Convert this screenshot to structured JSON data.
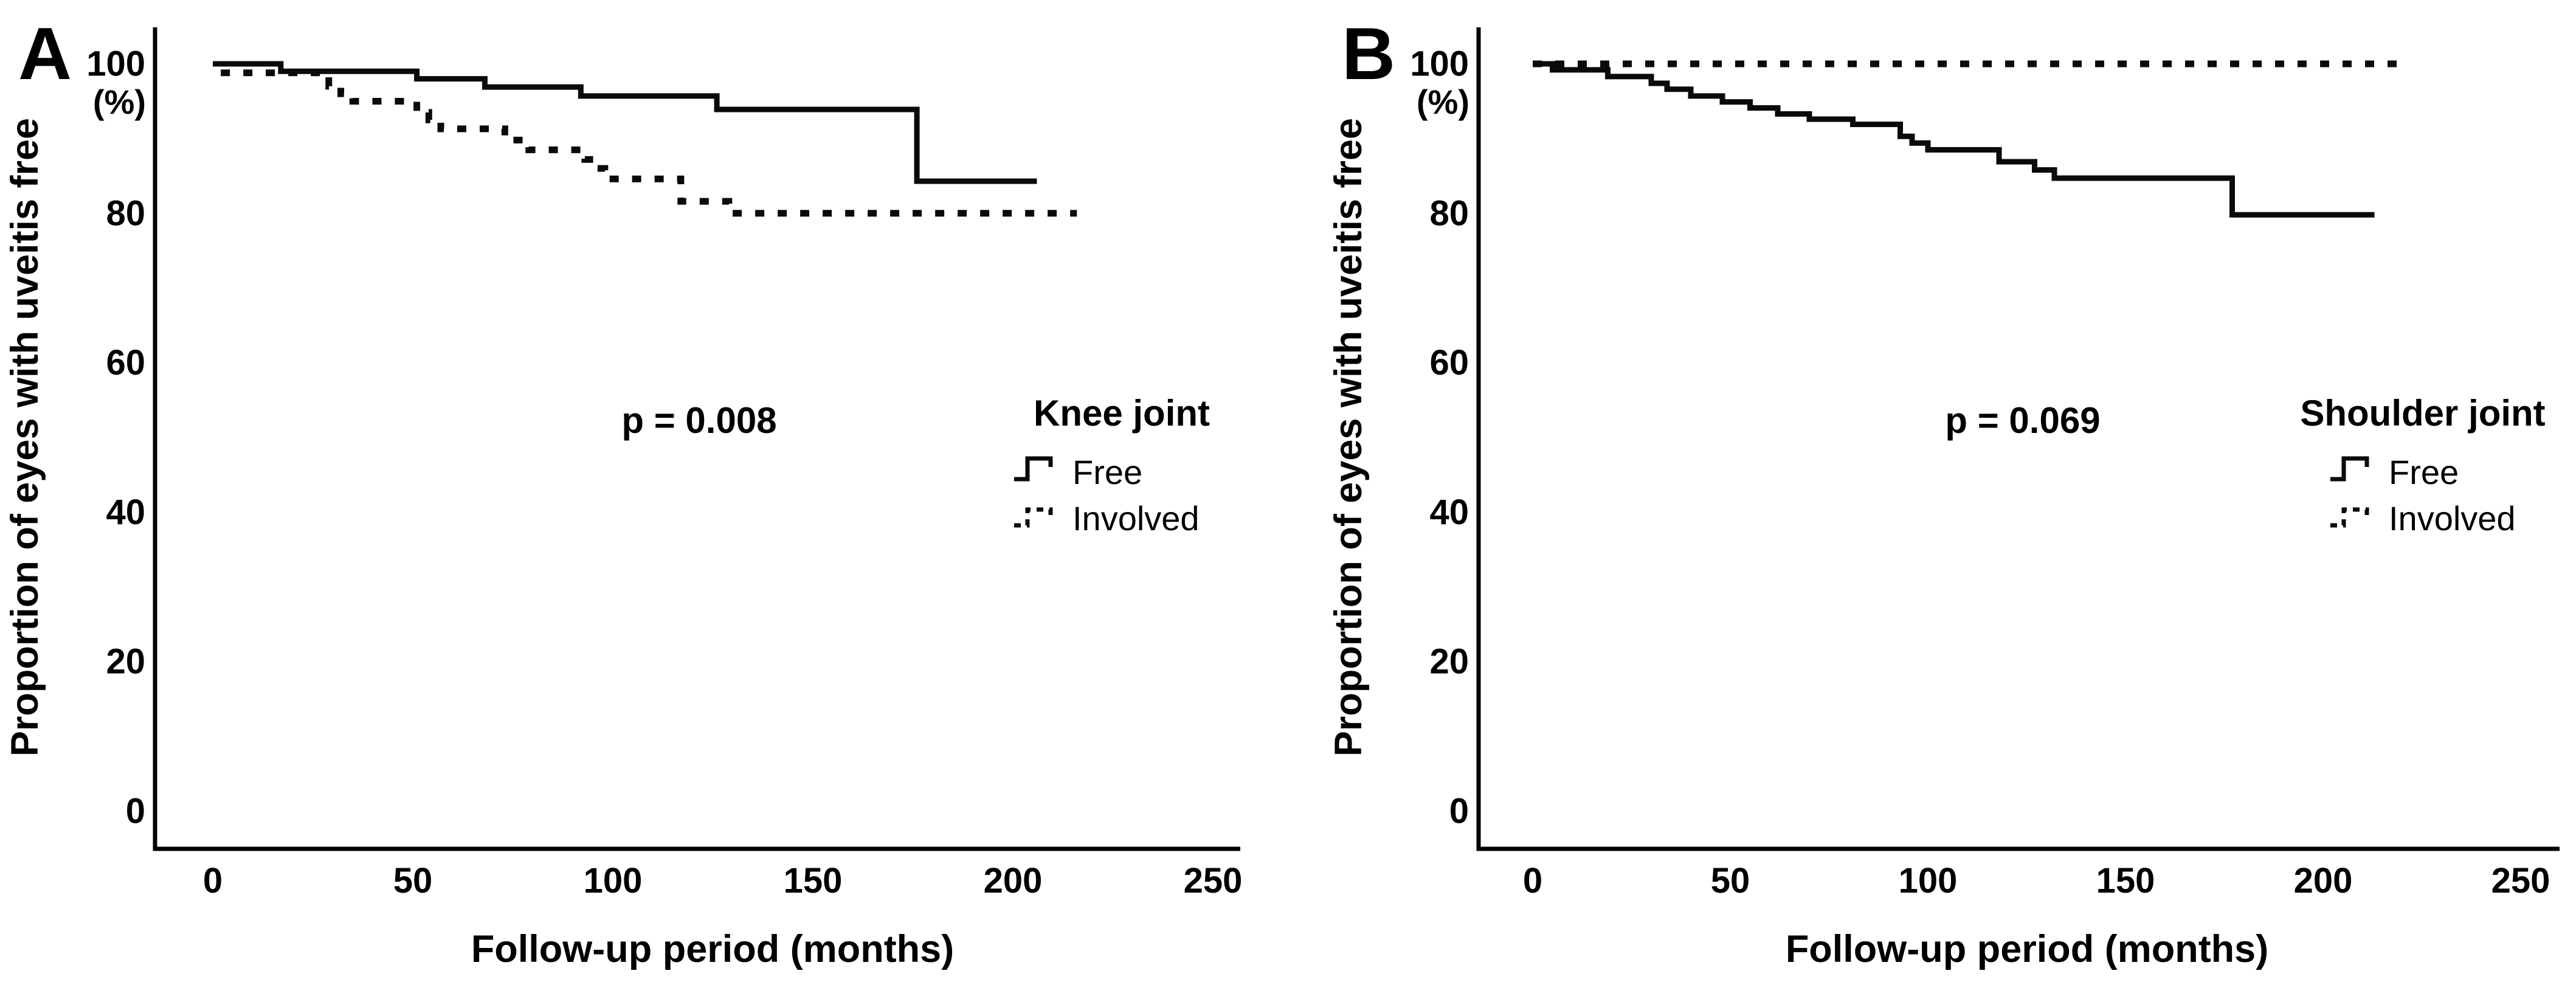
{
  "figure": {
    "background": "#ffffff",
    "ink_color": "#000000",
    "panel_count": 2
  },
  "chart_data": [
    {
      "type": "line",
      "step": true,
      "panel_label": "A",
      "annotation": "p = 0.008",
      "legend_title": "Knee joint",
      "legend_position": "right",
      "xlabel": "Follow-up period (months)",
      "ylabel": "Proportion of eyes with uveitis free",
      "ylabel_unit": "(%)",
      "x_ticks": [
        0,
        50,
        100,
        150,
        200,
        250
      ],
      "y_ticks": [
        100,
        80,
        60,
        40,
        20,
        0
      ],
      "xlim": [
        0,
        265
      ],
      "ylim": [
        0,
        100
      ],
      "grid": false,
      "series": [
        {
          "name": "Free",
          "line": "solid",
          "points": [
            [
              0,
              100
            ],
            [
              17,
              100
            ],
            [
              17,
              99
            ],
            [
              51,
              99
            ],
            [
              51,
              98
            ],
            [
              68,
              98
            ],
            [
              68,
              96.9
            ],
            [
              92,
              96.9
            ],
            [
              92,
              95.7
            ],
            [
              126,
              95.7
            ],
            [
              126,
              93.9
            ],
            [
              176,
              93.9
            ],
            [
              176,
              84.3
            ],
            [
              206,
              84.3
            ]
          ]
        },
        {
          "name": "Involved",
          "line": "dashed",
          "points": [
            [
              2,
              98.8
            ],
            [
              26,
              98.8
            ],
            [
              29,
              97
            ],
            [
              32,
              96
            ],
            [
              35,
              95
            ],
            [
              48,
              95
            ],
            [
              51,
              93.5
            ],
            [
              54,
              92.5
            ],
            [
              57,
              91.3
            ],
            [
              70,
              91.3
            ],
            [
              73,
              89.8
            ],
            [
              79,
              88.5
            ],
            [
              90,
              88.5
            ],
            [
              93,
              87.2
            ],
            [
              96,
              86
            ],
            [
              98,
              84.6
            ],
            [
              115,
              84.6
            ],
            [
              117,
              81.6
            ],
            [
              127,
              81.6
            ],
            [
              129,
              80
            ],
            [
              216,
              80
            ]
          ]
        }
      ]
    },
    {
      "type": "line",
      "step": true,
      "panel_label": "B",
      "annotation": "p = 0.069",
      "legend_title": "Shoulder joint",
      "legend_position": "right",
      "xlabel": "Follow-up period (months)",
      "ylabel": "Proportion of eyes with uveitis free",
      "ylabel_unit": "(%)",
      "x_ticks": [
        0,
        50,
        100,
        150,
        200,
        250
      ],
      "y_ticks": [
        100,
        80,
        60,
        40,
        20,
        0
      ],
      "xlim": [
        0,
        265
      ],
      "ylim": [
        0,
        100
      ],
      "grid": false,
      "series": [
        {
          "name": "Free",
          "line": "solid",
          "points": [
            [
              1,
              100
            ],
            [
              5,
              100
            ],
            [
              5,
              99.2
            ],
            [
              19,
              99.2
            ],
            [
              19,
              98.3
            ],
            [
              30,
              98.3
            ],
            [
              30,
              97.4
            ],
            [
              34,
              97.4
            ],
            [
              34,
              96.6
            ],
            [
              40,
              96.6
            ],
            [
              40,
              95.7
            ],
            [
              48,
              95.7
            ],
            [
              48,
              94.9
            ],
            [
              55,
              94.9
            ],
            [
              55,
              94.1
            ],
            [
              62,
              94.1
            ],
            [
              62,
              93.3
            ],
            [
              70,
              93.3
            ],
            [
              70,
              92.6
            ],
            [
              81,
              92.6
            ],
            [
              81,
              91.9
            ],
            [
              93,
              91.9
            ],
            [
              93,
              90.3
            ],
            [
              96,
              90.3
            ],
            [
              96,
              89.4
            ],
            [
              100,
              89.4
            ],
            [
              100,
              88.5
            ],
            [
              117,
              88.5
            ],
            [
              118,
              86.9
            ],
            [
              127,
              86.9
            ],
            [
              127,
              85.8
            ],
            [
              132,
              85.8
            ],
            [
              132,
              84.7
            ],
            [
              176,
              84.7
            ],
            [
              177,
              79.8
            ],
            [
              213,
              79.8
            ]
          ]
        },
        {
          "name": "Involved",
          "line": "dashed",
          "points": [
            [
              0,
              100
            ],
            [
              219,
              100
            ]
          ]
        }
      ]
    }
  ]
}
